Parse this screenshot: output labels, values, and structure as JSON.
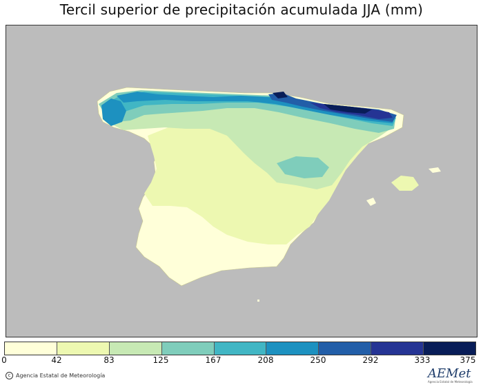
{
  "title": "Tercil superior de precipitación acumulada JJA (mm)",
  "map": {
    "background_color": "#bcbcbc",
    "region": "Iberian Peninsula and Balearic Islands"
  },
  "legend": {
    "ticks": [
      "0",
      "42",
      "83",
      "125",
      "167",
      "208",
      "250",
      "292",
      "333",
      "375"
    ],
    "colors": [
      "#ffffd9",
      "#edf8b1",
      "#c7e9b4",
      "#7fcdbb",
      "#41b6c4",
      "#1d91c0",
      "#225ea8",
      "#253494",
      "#081d58"
    ]
  },
  "credit": {
    "copyright_symbol": "c",
    "text": "Agencia Estatal de Meteorología"
  },
  "logo": {
    "brand": "AEMet",
    "sub": "Agencia Estatal de Meteorología"
  }
}
